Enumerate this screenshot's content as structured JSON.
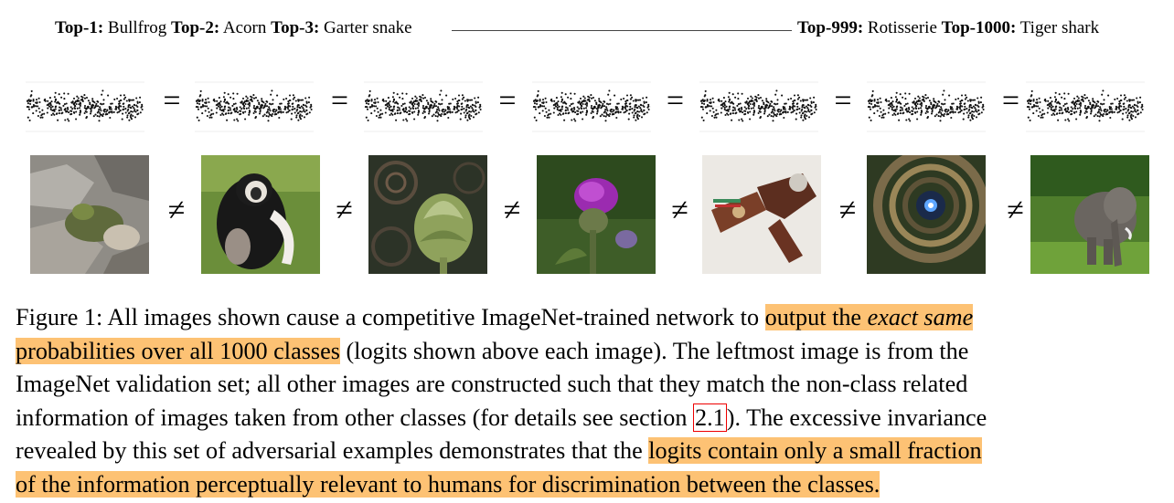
{
  "top_labels": {
    "top1_label": "Top-1:",
    "top1_value": "Bullfrog",
    "top2_label": "Top-2:",
    "top2_value": "Acorn",
    "top3_label": "Top-3:",
    "top3_value": "Garter snake",
    "top999_label": "Top-999:",
    "top999_value": "Rotisserie",
    "top1000_label": "Top-1000:",
    "top1000_value": "Tiger shark"
  },
  "symbols": {
    "equal": "=",
    "not_equal": "≠"
  },
  "panels": [
    {
      "name": "bullfrog-image"
    },
    {
      "name": "colobus-monkey-image"
    },
    {
      "name": "artichoke-image"
    },
    {
      "name": "thistle-flower-image"
    },
    {
      "name": "mechanical-robot-image"
    },
    {
      "name": "spiral-staircase-image"
    },
    {
      "name": "elephant-image"
    }
  ],
  "caption": {
    "line1_a": "Figure 1: All images shown cause a competitive ImageNet-trained network to ",
    "line1_hl_a": "output the ",
    "line1_hl_em": "exact same",
    "line2_hl": "probabilities over all 1000 classes",
    "line2_b": " (logits shown above each image). The leftmost image is from the",
    "line3": "ImageNet validation set; all other images are constructed such that they match the non-class related",
    "line4_a": "information of images taken from other classes (for details see section ",
    "line4_ref": "2.1",
    "line4_b": "). The excessive invariance",
    "line5_a": "revealed by this set of adversarial examples demonstrates that the ",
    "line5_hl": "logits contain only a small fraction",
    "line6_hl": "of the information perceptually relevant to humans for discrimination between the classes."
  },
  "colors": {
    "highlight": "#fdc274",
    "ref_border": "#e00000"
  }
}
